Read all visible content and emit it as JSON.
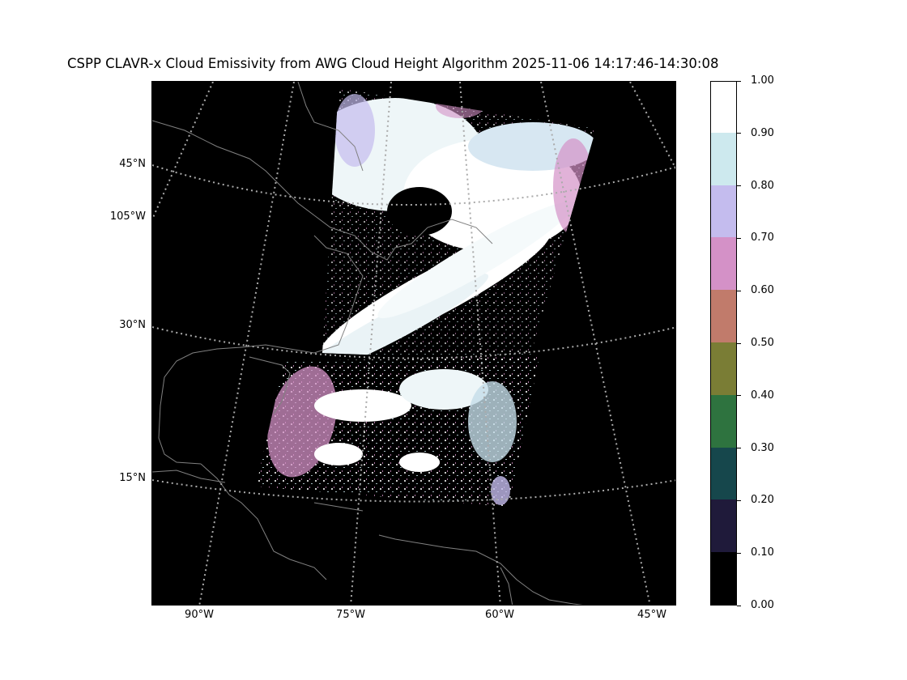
{
  "title": "CSPP CLAVR-x Cloud Emissivity from AWG Cloud Height Algorithm 2025-11-06 14:17:46-14:30:08",
  "map": {
    "background_color": "#000000",
    "coastline_color": "#808080",
    "gridline_color": "#aaaaaa",
    "lat_labels": [
      "45°N",
      "105°W",
      "30°N",
      "15°N"
    ],
    "lon_labels": [
      "90°W",
      "75°W",
      "60°W",
      "45°W"
    ]
  },
  "colorbar": {
    "ticks": [
      "1.00",
      "0.90",
      "0.80",
      "0.70",
      "0.60",
      "0.50",
      "0.40",
      "0.30",
      "0.20",
      "0.10",
      "0.00"
    ],
    "colors": [
      "#000000",
      "#1f1a3a",
      "#16474c",
      "#2e733f",
      "#7a7d35",
      "#c17b6b",
      "#d491c7",
      "#c4bcee",
      "#cde9ee",
      "#ffffff"
    ]
  }
}
